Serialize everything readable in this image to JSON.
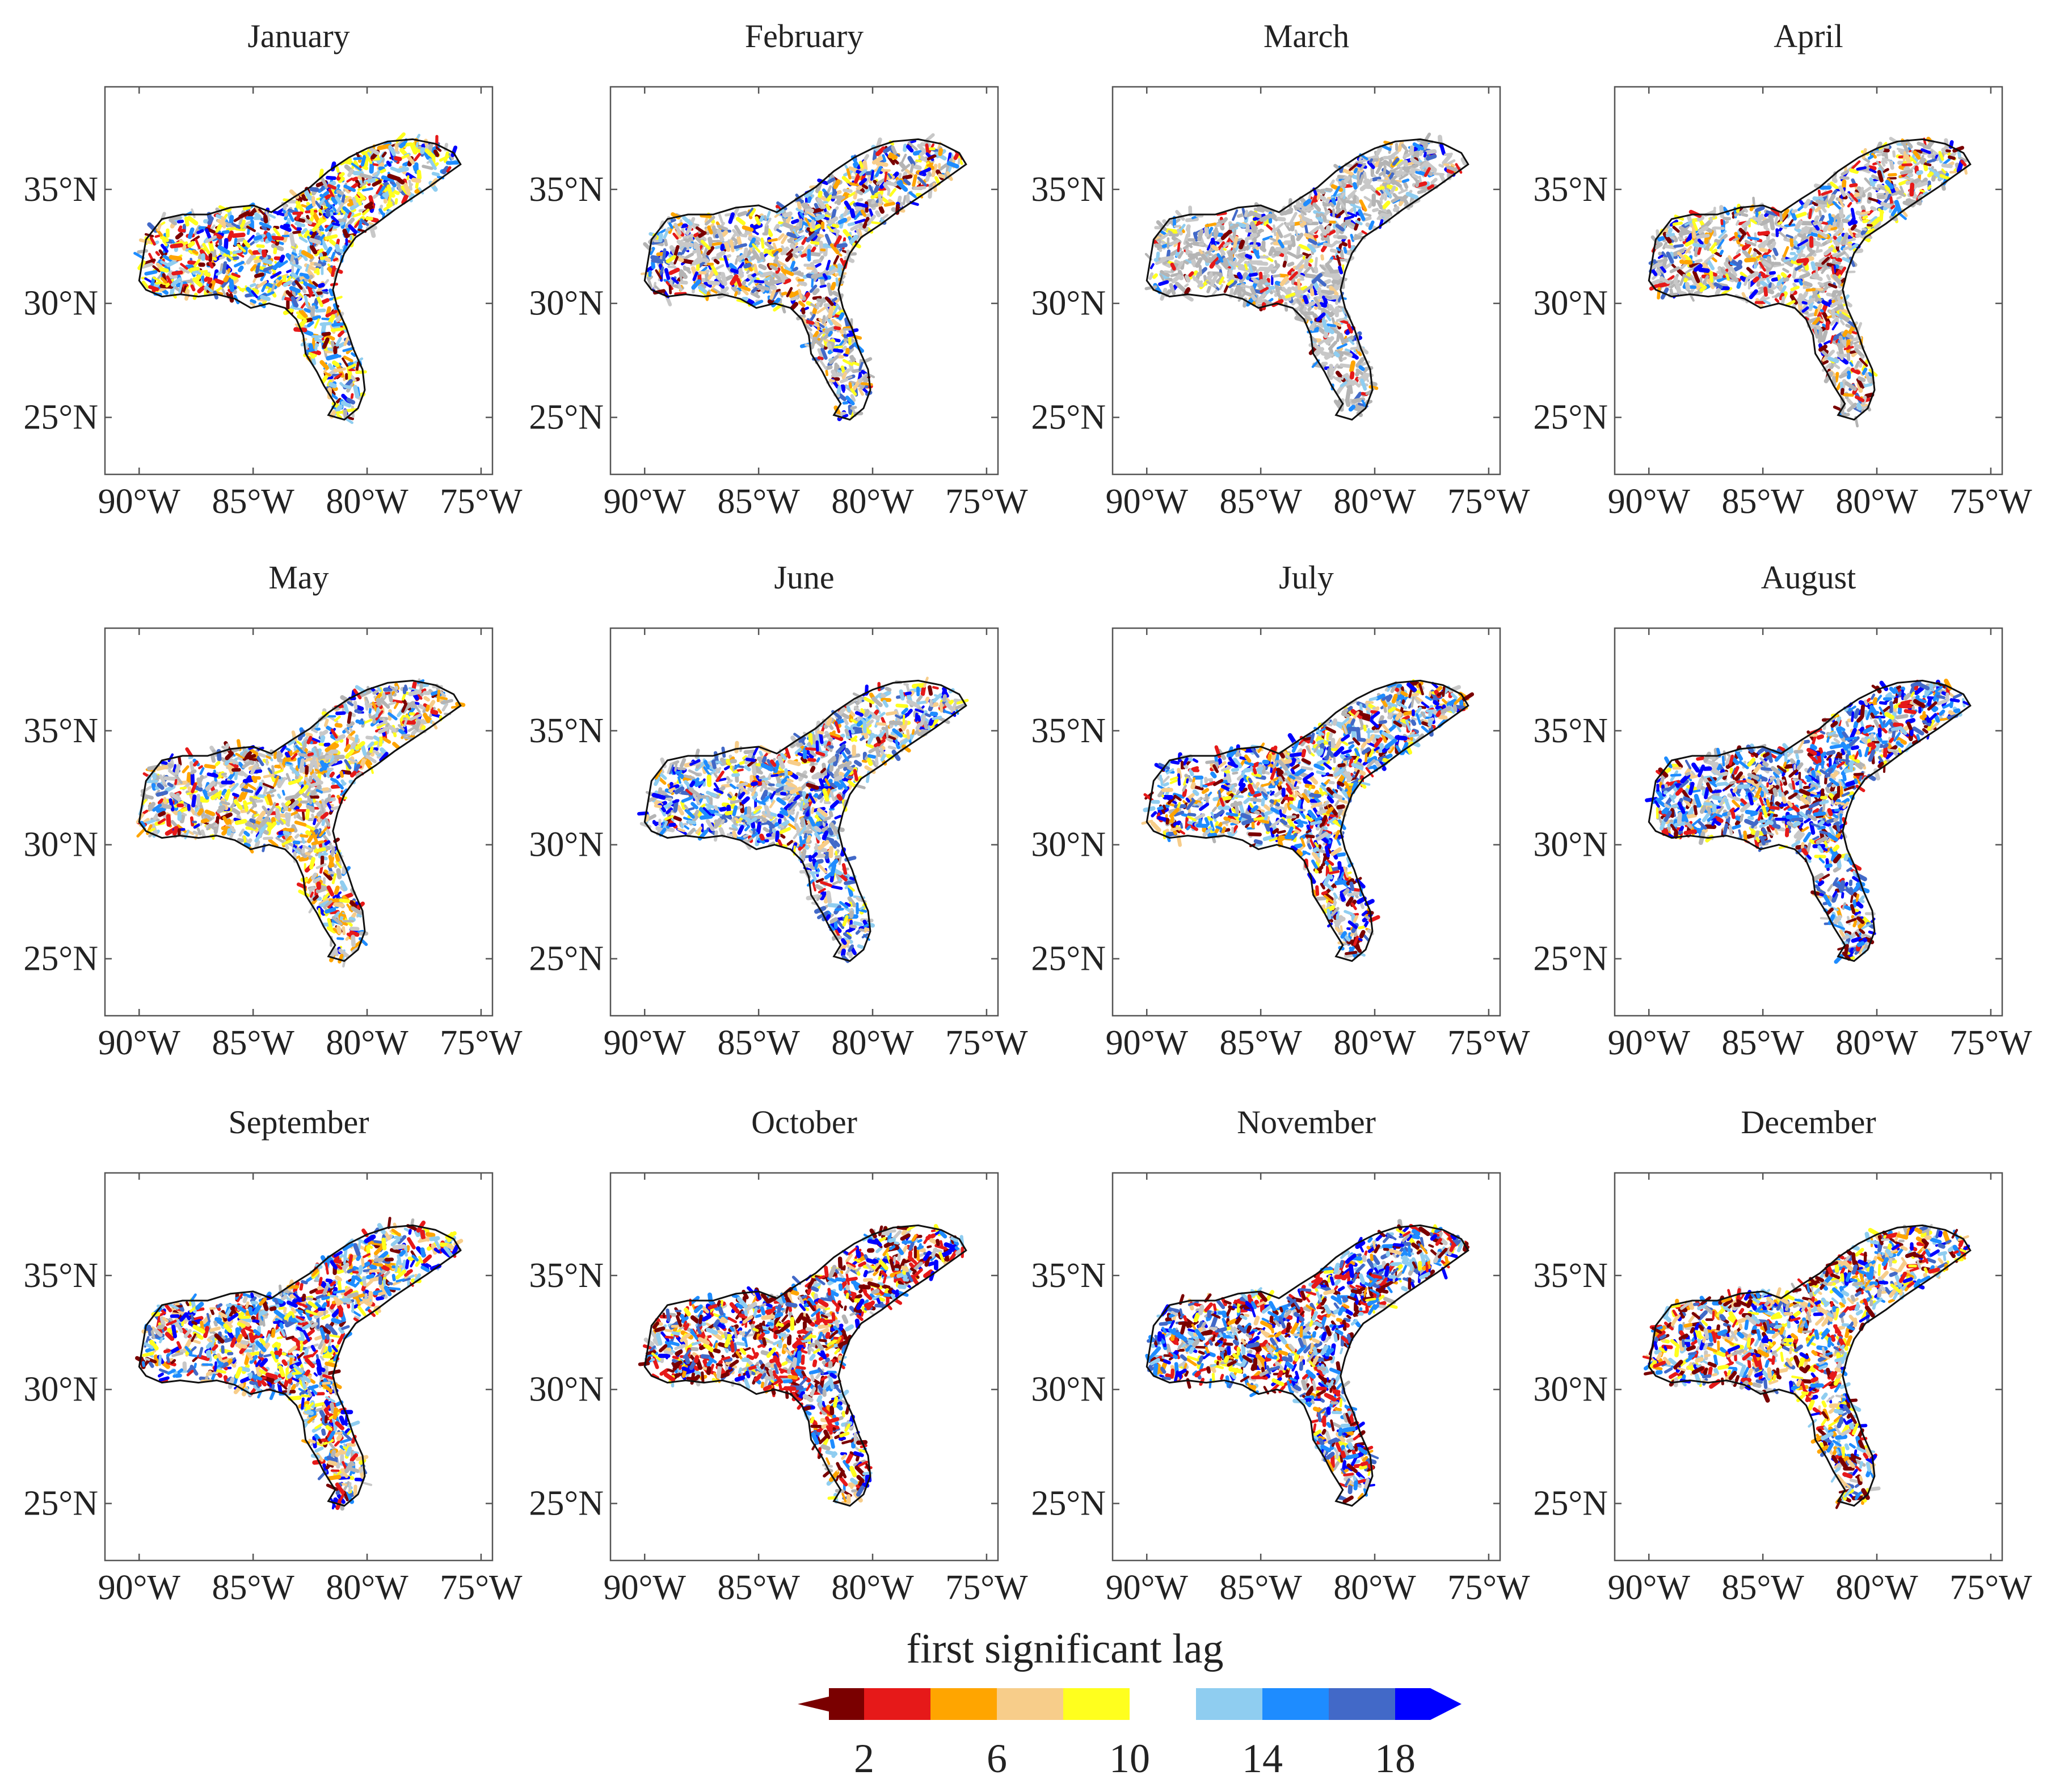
{
  "figure": {
    "colorbar": {
      "title": "first significant lag",
      "colors": [
        "#7a0000",
        "#e61919",
        "#ffa500",
        "#f7cd8a",
        "#ffff1e",
        "#ffffff",
        "#8fcdf0",
        "#1e8cff",
        "#4269c8",
        "#0000ff"
      ],
      "tick_labels": [
        "2",
        "6",
        "10",
        "14",
        "18"
      ],
      "extend": "both"
    },
    "axes": {
      "lon_labels": [
        "90°W",
        "85°W",
        "80°W",
        "75°W"
      ],
      "lat_labels": [
        "35°N",
        "30°N",
        "25°N"
      ]
    },
    "panels": [
      {
        "title": "January",
        "dist": [
          0.06,
          0.1,
          0.04,
          0.06,
          0.16,
          0.22,
          0.12,
          0.14,
          0.06,
          0.04
        ],
        "gray": 0.08
      },
      {
        "title": "February",
        "dist": [
          0.06,
          0.06,
          0.08,
          0.1,
          0.08,
          0.26,
          0.08,
          0.08,
          0.08,
          0.12
        ],
        "gray": 0.3
      },
      {
        "title": "March",
        "dist": [
          0.04,
          0.08,
          0.04,
          0.06,
          0.06,
          0.4,
          0.1,
          0.08,
          0.06,
          0.08
        ],
        "gray": 0.5
      },
      {
        "title": "April",
        "dist": [
          0.06,
          0.1,
          0.06,
          0.06,
          0.1,
          0.34,
          0.08,
          0.08,
          0.06,
          0.06
        ],
        "gray": 0.4
      },
      {
        "title": "May",
        "dist": [
          0.04,
          0.1,
          0.16,
          0.08,
          0.12,
          0.18,
          0.1,
          0.08,
          0.06,
          0.08
        ],
        "gray": 0.3
      },
      {
        "title": "June",
        "dist": [
          0.02,
          0.06,
          0.04,
          0.1,
          0.08,
          0.14,
          0.16,
          0.12,
          0.14,
          0.14
        ],
        "gray": 0.28
      },
      {
        "title": "July",
        "dist": [
          0.1,
          0.08,
          0.08,
          0.08,
          0.06,
          0.14,
          0.12,
          0.12,
          0.1,
          0.12
        ],
        "gray": 0.15
      },
      {
        "title": "August",
        "dist": [
          0.12,
          0.1,
          0.04,
          0.06,
          0.04,
          0.1,
          0.14,
          0.16,
          0.12,
          0.12
        ],
        "gray": 0.15
      },
      {
        "title": "September",
        "dist": [
          0.06,
          0.14,
          0.06,
          0.1,
          0.1,
          0.12,
          0.12,
          0.12,
          0.1,
          0.08
        ],
        "gray": 0.1
      },
      {
        "title": "October",
        "dist": [
          0.18,
          0.2,
          0.06,
          0.06,
          0.06,
          0.08,
          0.1,
          0.1,
          0.08,
          0.08
        ],
        "gray": 0.12
      },
      {
        "title": "November",
        "dist": [
          0.16,
          0.14,
          0.06,
          0.04,
          0.06,
          0.08,
          0.1,
          0.14,
          0.12,
          0.1
        ],
        "gray": 0.08
      },
      {
        "title": "December",
        "dist": [
          0.12,
          0.1,
          0.06,
          0.12,
          0.12,
          0.12,
          0.1,
          0.1,
          0.08,
          0.08
        ],
        "gray": 0.08
      }
    ]
  }
}
